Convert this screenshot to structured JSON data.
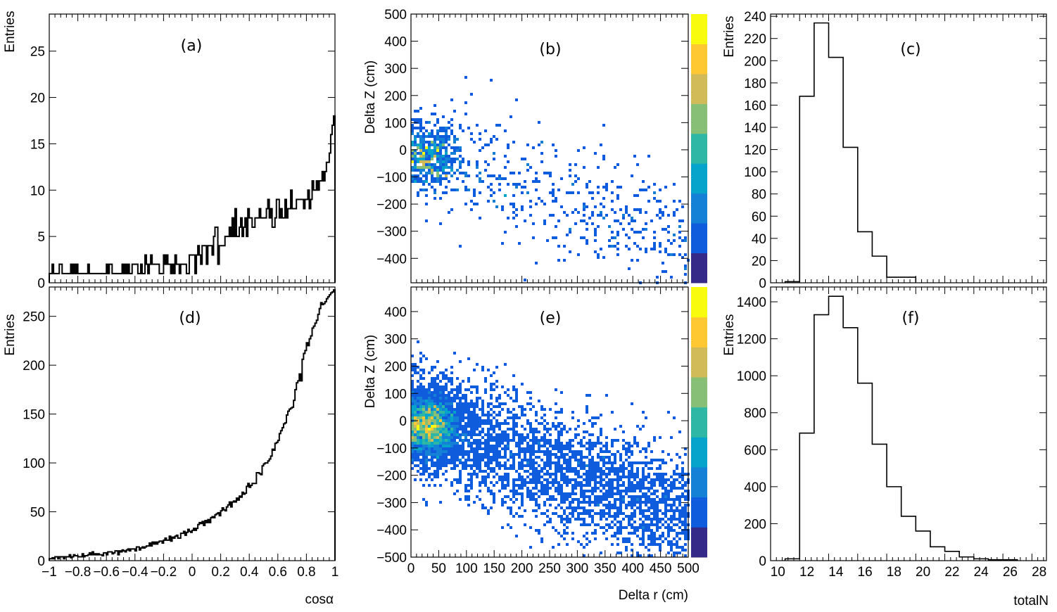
{
  "chart_data": [
    {
      "id": "a",
      "panel_label": "(a)",
      "type": "bar",
      "style": "step-histogram",
      "xlim": [
        -1,
        1
      ],
      "ylim": [
        0,
        29
      ],
      "x_ticks": [],
      "y_ticks": [
        "0",
        "5",
        "10",
        "15",
        "20",
        "25"
      ],
      "xlabel": "",
      "ylabel": "Entries",
      "bins": 200,
      "values": [
        1,
        1,
        2,
        1,
        1,
        1,
        1,
        2,
        2,
        1,
        1,
        1,
        1,
        1,
        1,
        2,
        1,
        2,
        1,
        2,
        1,
        1,
        1,
        1,
        1,
        1,
        1,
        2,
        1,
        1,
        1,
        1,
        1,
        1,
        1,
        1,
        1,
        1,
        1,
        1,
        2,
        1,
        2,
        2,
        1,
        1,
        1,
        1,
        1,
        1,
        1,
        2,
        1,
        2,
        1,
        2,
        1,
        1,
        2,
        2,
        2,
        2,
        1,
        1,
        2,
        1,
        1,
        3,
        2,
        1,
        2,
        3,
        2,
        2,
        2,
        2,
        2,
        1,
        1,
        1,
        3,
        2,
        3,
        2,
        2,
        1,
        2,
        1,
        3,
        2,
        2,
        1,
        2,
        2,
        2,
        2,
        1,
        1,
        3,
        3,
        3,
        3,
        1,
        3,
        4,
        3,
        2,
        4,
        4,
        4,
        2,
        4,
        4,
        4,
        3,
        5,
        6,
        6,
        2,
        4,
        4,
        4,
        4,
        5,
        5,
        5,
        6,
        5,
        7,
        5,
        8,
        5,
        5,
        6,
        7,
        5,
        6,
        7,
        5,
        8,
        7,
        7,
        6,
        6,
        7,
        7,
        7,
        8,
        7,
        7,
        7,
        7,
        8,
        9,
        7,
        8,
        6,
        6,
        7,
        9,
        9,
        7,
        8,
        7,
        7,
        9,
        7,
        8,
        8,
        10,
        8,
        8,
        8,
        9,
        9,
        9,
        9,
        9,
        8,
        9,
        9,
        10,
        8,
        9,
        11,
        10,
        10,
        11,
        10,
        11,
        11,
        12,
        11,
        12,
        13,
        13,
        14,
        16,
        17,
        18
      ]
    },
    {
      "id": "b",
      "panel_label": "(b)",
      "type": "heatmap",
      "xlim": [
        0,
        500
      ],
      "ylim": [
        -490,
        500
      ],
      "x_ticks": [],
      "y_ticks": [
        "−400",
        "−300",
        "−200",
        "−100",
        "0",
        "100",
        "200",
        "300",
        "400",
        "500"
      ],
      "xlabel": "",
      "ylabel": "Delta Z (cm)",
      "n_points": 1000,
      "colormap": "parula",
      "colors": [
        "#352a87",
        "#0f5cdd",
        "#1481d6",
        "#06a4ca",
        "#2eb7a4",
        "#87bf77",
        "#d1bb59",
        "#fec832",
        "#f9fb0e"
      ]
    },
    {
      "id": "c",
      "panel_label": "(c)",
      "type": "bar",
      "style": "step-histogram",
      "xlim": [
        9.5,
        28.5
      ],
      "ylim": [
        0,
        242
      ],
      "bin_edges": [
        10.5,
        11.5,
        12.5,
        13.5,
        14.5,
        15.5,
        16.5,
        17.5,
        18.5,
        19.5
      ],
      "values": [
        1,
        168,
        234,
        203,
        122,
        46,
        24,
        5,
        5
      ],
      "x_ticks": [],
      "y_ticks": [
        "0",
        "20",
        "40",
        "60",
        "80",
        "100",
        "120",
        "140",
        "160",
        "180",
        "200",
        "220",
        "240"
      ],
      "xlabel": "",
      "ylabel": "Entries"
    },
    {
      "id": "d",
      "panel_label": "(d)",
      "type": "bar",
      "style": "step-histogram",
      "xlim": [
        -1,
        1
      ],
      "ylim": [
        0,
        280
      ],
      "x_ticks": [
        "−1",
        "−0.8",
        "−0.6",
        "−0.4",
        "−0.2",
        "0",
        "0.2",
        "0.4",
        "0.6",
        "0.8",
        "1"
      ],
      "y_ticks": [
        "0",
        "50",
        "100",
        "150",
        "200",
        "250"
      ],
      "xlabel": "cosα",
      "ylabel": "Entries",
      "bins": 200,
      "values": [
        2,
        2,
        3,
        2,
        4,
        4,
        2,
        4,
        4,
        4,
        2,
        4,
        4,
        4,
        6,
        3,
        4,
        6,
        5,
        5,
        4,
        4,
        4,
        7,
        4,
        5,
        5,
        6,
        8,
        6,
        9,
        6,
        7,
        6,
        7,
        6,
        6,
        5,
        8,
        8,
        6,
        9,
        9,
        9,
        7,
        8,
        10,
        10,
        6,
        10,
        9,
        11,
        10,
        9,
        11,
        12,
        10,
        12,
        12,
        12,
        10,
        14,
        14,
        11,
        13,
        14,
        13,
        14,
        15,
        15,
        18,
        15,
        19,
        17,
        19,
        17,
        19,
        20,
        20,
        18,
        21,
        23,
        21,
        21,
        25,
        20,
        24,
        23,
        25,
        26,
        23,
        23,
        28,
        28,
        30,
        26,
        29,
        32,
        30,
        29,
        31,
        33,
        31,
        33,
        37,
        39,
        38,
        40,
        36,
        41,
        39,
        42,
        39,
        44,
        45,
        44,
        47,
        48,
        49,
        46,
        51,
        54,
        52,
        51,
        55,
        57,
        60,
        55,
        60,
        61,
        60,
        64,
        62,
        66,
        65,
        70,
        68,
        69,
        76,
        79,
        75,
        77,
        79,
        79,
        79,
        90,
        90,
        89,
        88,
        97,
        99,
        100,
        100,
        102,
        104,
        107,
        114,
        113,
        120,
        121,
        123,
        130,
        133,
        136,
        140,
        141,
        149,
        153,
        155,
        156,
        157,
        164,
        175,
        182,
        184,
        191,
        184,
        206,
        212,
        215,
        223,
        220,
        227,
        230,
        238,
        240,
        243,
        246,
        252,
        258,
        264,
        262,
        263,
        265,
        268,
        270,
        272,
        274,
        275,
        277
      ]
    },
    {
      "id": "e",
      "panel_label": "(e)",
      "type": "heatmap",
      "xlim": [
        0,
        500
      ],
      "ylim": [
        -500,
        490
      ],
      "x_ticks": [
        "0",
        "50",
        "100",
        "150",
        "200",
        "250",
        "300",
        "350",
        "400",
        "450",
        "500"
      ],
      "y_ticks": [
        "−500",
        "−400",
        "−300",
        "−200",
        "−100",
        "0",
        "100",
        "200",
        "300",
        "400"
      ],
      "xlabel": "Delta r (cm)",
      "ylabel": "Delta Z (cm)",
      "n_points": 6500,
      "colormap": "parula",
      "colors": [
        "#352a87",
        "#0f5cdd",
        "#1481d6",
        "#06a4ca",
        "#2eb7a4",
        "#87bf77",
        "#d1bb59",
        "#fec832",
        "#f9fb0e"
      ]
    },
    {
      "id": "f",
      "panel_label": "(f)",
      "type": "bar",
      "style": "step-histogram",
      "xlim": [
        9.5,
        28.5
      ],
      "ylim": [
        0,
        1480
      ],
      "bin_edges": [
        10.5,
        11.5,
        12.5,
        13.5,
        14.5,
        15.5,
        16.5,
        17.5,
        18.5,
        19.5,
        20.5,
        21.5,
        22.5,
        23.5,
        24.5,
        25.5,
        26.5
      ],
      "values": [
        10,
        690,
        1330,
        1430,
        1260,
        960,
        630,
        400,
        240,
        160,
        75,
        50,
        20,
        10,
        5,
        5
      ],
      "x_ticks": [
        "10",
        "12",
        "14",
        "16",
        "18",
        "20",
        "22",
        "24",
        "26",
        "28"
      ],
      "y_ticks": [
        "0",
        "200",
        "400",
        "600",
        "800",
        "1000",
        "1200",
        "1400"
      ],
      "xlabel": "totalN",
      "ylabel": "Entries"
    }
  ]
}
